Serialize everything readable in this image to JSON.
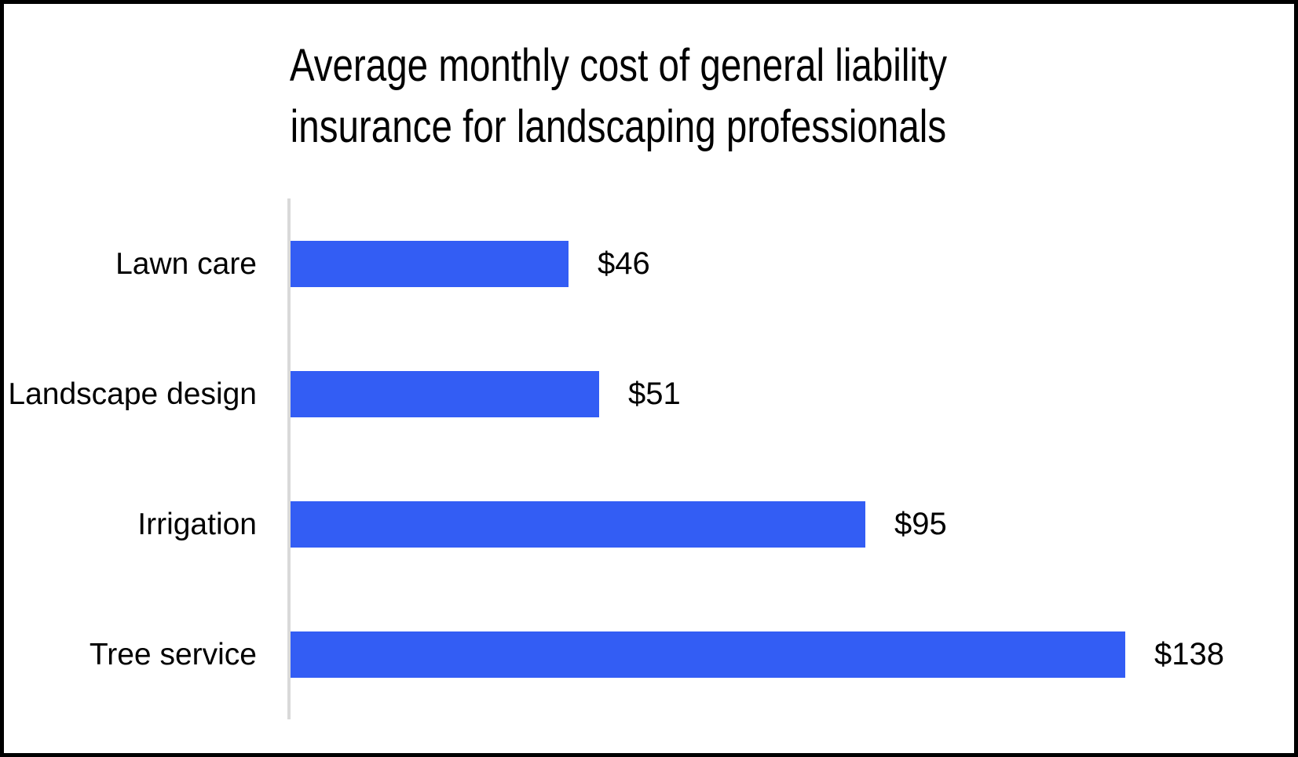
{
  "frame": {
    "background_color": "#ffffff",
    "border_color": "#000000"
  },
  "chart_data": {
    "type": "bar",
    "orientation": "horizontal",
    "title": "Average monthly cost of general liability insurance for landscaping professionals",
    "title_lines": [
      "Average monthly cost of general liability",
      "insurance for landscaping professionals"
    ],
    "categories": [
      "Lawn care",
      "Landscape design",
      "Irrigation",
      "Tree service"
    ],
    "values": [
      46,
      51,
      95,
      138
    ],
    "value_labels": [
      "$46",
      "$51",
      "$95",
      "$138"
    ],
    "xlabel": "",
    "ylabel": "",
    "xlim": [
      0,
      138
    ],
    "grid": false,
    "legend": false,
    "bar_color": "#335DF4",
    "axis_line_color": "#D9D9D9",
    "text_color": "#000000"
  }
}
